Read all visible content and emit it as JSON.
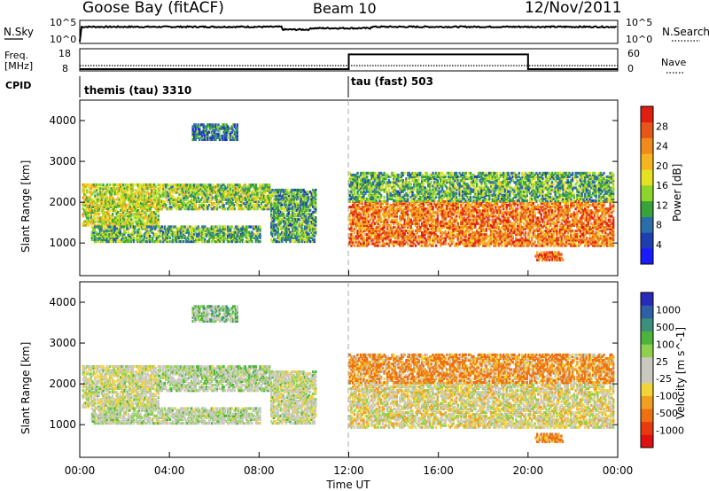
{
  "header": {
    "station": "Goose Bay (fitACF)",
    "beam": "Beam 10",
    "date": "12/Nov/2011"
  },
  "noise_panel": {
    "left_label": "N.Sky",
    "left_ticks": [
      "10^5",
      "10^0"
    ],
    "right_label": "N.Search",
    "right_ticks": [
      "10^5",
      "10^0"
    ]
  },
  "freq_panel": {
    "left_label_line1": "Freq.",
    "left_label_line2": "[MHz]",
    "left_ticks": [
      "18",
      "8"
    ],
    "right_label": "Nave",
    "right_ticks": [
      "60",
      "0"
    ]
  },
  "cpid_panel": {
    "label": "CPID",
    "modes": [
      {
        "name": "themis (tau) 3310",
        "start": "00:00"
      },
      {
        "name": "tau (fast) 503",
        "start": "12:00"
      }
    ]
  },
  "x_axis": {
    "label": "Time UT",
    "ticks": [
      "00:00",
      "04:00",
      "08:00",
      "12:00",
      "16:00",
      "20:00",
      "00:00"
    ]
  },
  "power_panel": {
    "ylabel": "Slant Range [km]",
    "yticks": [
      "1000",
      "2000",
      "3000",
      "4000"
    ],
    "colorbar_label": "Power [dB]",
    "colorbar_ticks": [
      "4",
      "8",
      "12",
      "16",
      "20",
      "24",
      "28"
    ],
    "colors": [
      "#1a1aff",
      "#1f3fb0",
      "#2c6ea8",
      "#3aa23a",
      "#8dd52a",
      "#e6e025",
      "#f5b521",
      "#f08a1a",
      "#e8551a",
      "#e01f12"
    ]
  },
  "velocity_panel": {
    "ylabel": "Slant Range [km]",
    "yticks": [
      "1000",
      "2000",
      "3000",
      "4000"
    ],
    "colorbar_label": "Velocity [m s^-1]",
    "colorbar_ticks": [
      "1000",
      "500",
      "100",
      "25",
      "-25",
      "-100",
      "-500",
      "-1000"
    ],
    "colors": [
      "#2a2ab8",
      "#2f5fa5",
      "#3c8f7a",
      "#4cb33c",
      "#8fd14f",
      "#c8c8bf",
      "#c8c8bf",
      "#f2d33a",
      "#f0a020",
      "#ee7010",
      "#e83a10",
      "#e01010"
    ]
  },
  "chart_data": {
    "type": "heatmap",
    "x_range_hours": [
      0,
      24
    ],
    "y_range_km": [
      200,
      4500
    ],
    "freq_mhz": {
      "segments": [
        {
          "from_hour": 0,
          "to_hour": 24,
          "value": 10
        }
      ]
    },
    "nave": {
      "segments": [
        {
          "from_hour": 0,
          "to_hour": 12,
          "value": 0
        },
        {
          "from_hour": 12,
          "to_hour": 20,
          "value": 50
        },
        {
          "from_hour": 20,
          "to_hour": 24,
          "value": 0
        }
      ]
    },
    "noise_level_log10": 3.8,
    "scatter_regions": [
      {
        "from_hour": 0.1,
        "to_hour": 3.5,
        "from_km": 1400,
        "to_km": 2400,
        "power_db": 14,
        "velocity": -10
      },
      {
        "from_hour": 3.5,
        "to_hour": 8.5,
        "from_km": 1800,
        "to_km": 2400,
        "power_db": 12,
        "velocity": 5
      },
      {
        "from_hour": 0.5,
        "to_hour": 8,
        "from_km": 1000,
        "to_km": 1400,
        "power_db": 10,
        "velocity": 0
      },
      {
        "from_hour": 8.5,
        "to_hour": 10.5,
        "from_km": 1000,
        "to_km": 2300,
        "power_db": 9,
        "velocity": -5
      },
      {
        "from_hour": 12,
        "to_hour": 23.8,
        "from_km": 900,
        "to_km": 2000,
        "power_db": 22,
        "velocity": -20
      },
      {
        "from_hour": 12,
        "to_hour": 23.8,
        "from_km": 2000,
        "to_km": 2700,
        "power_db": 10,
        "velocity": -100
      },
      {
        "from_hour": 5,
        "to_hour": 7,
        "from_km": 3500,
        "to_km": 3900,
        "power_db": 6,
        "velocity": 20
      },
      {
        "from_hour": 20.3,
        "to_hour": 21.5,
        "from_km": 550,
        "to_km": 750,
        "power_db": 22,
        "velocity": -150
      }
    ]
  }
}
